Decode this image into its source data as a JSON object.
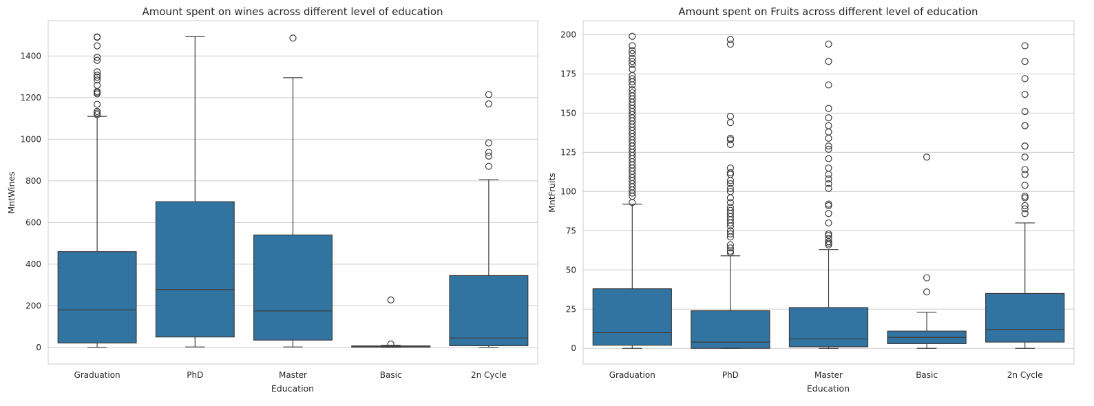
{
  "colors": {
    "box_fill": "#3274a1",
    "line": "#3d3d3d",
    "grid": "#cccccc",
    "spine": "#cccccc",
    "background": "#ffffff"
  },
  "chart_data": [
    {
      "type": "boxplot",
      "title": "Amount spent on wines across different level of education",
      "xlabel": "Education",
      "ylabel": "MntWines",
      "categories": [
        "Graduation",
        "PhD",
        "Master",
        "Basic",
        "2n Cycle"
      ],
      "ylim": [
        -80,
        1570
      ],
      "yticks": [
        0,
        200,
        400,
        600,
        800,
        1000,
        1200,
        1400
      ],
      "grid": "horizontal",
      "boxes": [
        {
          "category": "Graduation",
          "whisker_low": 0,
          "q1": 21,
          "median": 180,
          "q3": 460,
          "whisker_high": 1110,
          "outliers": [
            1490,
            1492,
            1449,
            1394,
            1379,
            1324,
            1308,
            1298,
            1285,
            1259,
            1230,
            1224,
            1218,
            1168,
            1134,
            1126,
            1118
          ]
        },
        {
          "category": "PhD",
          "whisker_low": 2,
          "q1": 50,
          "median": 278,
          "q3": 700,
          "whisker_high": 1493,
          "outliers": []
        },
        {
          "category": "Master",
          "whisker_low": 2,
          "q1": 35,
          "median": 175,
          "q3": 540,
          "whisker_high": 1296,
          "outliers": [
            1486
          ]
        },
        {
          "category": "Basic",
          "whisker_low": 0,
          "q1": 1,
          "median": 3,
          "q3": 7,
          "whisker_high": 10,
          "outliers": [
            228,
            16
          ]
        },
        {
          "category": "2n Cycle",
          "whisker_low": 0,
          "q1": 8,
          "median": 45,
          "q3": 345,
          "whisker_high": 806,
          "outliers": [
            1215,
            1170,
            982,
            937,
            919,
            870
          ]
        }
      ]
    },
    {
      "type": "boxplot",
      "title": "Amount spent on Fruits across different level of education",
      "xlabel": "Education",
      "ylabel": "MntFruits",
      "categories": [
        "Graduation",
        "PhD",
        "Master",
        "Basic",
        "2n Cycle"
      ],
      "ylim": [
        -10,
        209
      ],
      "yticks": [
        0,
        25,
        50,
        75,
        100,
        125,
        150,
        175,
        200
      ],
      "grid": "horizontal",
      "boxes": [
        {
          "category": "Graduation",
          "whisker_low": 0,
          "q1": 2,
          "median": 10,
          "q3": 38,
          "whisker_high": 92,
          "outliers": [
            199,
            193,
            190,
            188,
            185,
            183,
            181,
            178,
            174,
            172,
            170,
            168,
            165,
            163,
            161,
            159,
            157,
            155,
            153,
            151,
            149,
            147,
            145,
            143,
            141,
            139,
            137,
            135,
            133,
            131,
            129,
            127,
            125,
            123,
            121,
            119,
            117,
            115,
            113,
            111,
            109,
            107,
            105,
            103,
            101,
            99,
            97,
            93
          ]
        },
        {
          "category": "PhD",
          "whisker_low": 0,
          "q1": 0,
          "median": 4,
          "q3": 24,
          "whisker_high": 59,
          "outliers": [
            197,
            194,
            148,
            144,
            134,
            133,
            130,
            115,
            112,
            111,
            107,
            105,
            102,
            100,
            96,
            93,
            90,
            88,
            86,
            84,
            82,
            80,
            78,
            75,
            73,
            71,
            66,
            64,
            62,
            61
          ]
        },
        {
          "category": "Master",
          "whisker_low": 0,
          "q1": 1,
          "median": 6,
          "q3": 26,
          "whisker_high": 63,
          "outliers": [
            194,
            183,
            168,
            153,
            147,
            142,
            138,
            134,
            129,
            127,
            121,
            115,
            111,
            108,
            105,
            102,
            92,
            91,
            86,
            80,
            73,
            72,
            70,
            68,
            67,
            66
          ]
        },
        {
          "category": "Basic",
          "whisker_low": 0,
          "q1": 3,
          "median": 7,
          "q3": 11,
          "whisker_high": 23,
          "outliers": [
            122,
            45,
            36
          ]
        },
        {
          "category": "2n Cycle",
          "whisker_low": 0,
          "q1": 4,
          "median": 12,
          "q3": 35,
          "whisker_high": 80,
          "outliers": [
            193,
            183,
            172,
            162,
            151,
            142,
            142,
            129,
            129,
            122,
            114,
            111,
            104,
            97,
            96,
            91,
            89,
            86
          ]
        }
      ]
    }
  ]
}
